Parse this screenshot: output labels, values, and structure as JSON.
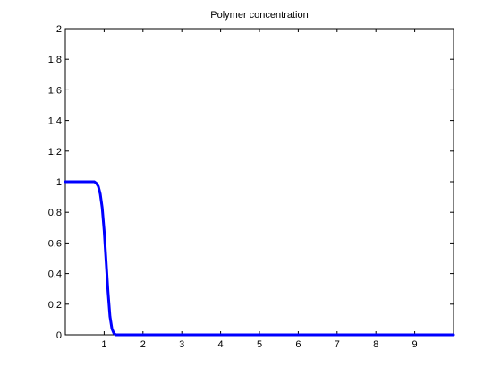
{
  "chart_data": {
    "type": "line",
    "title": "Polymer concentration",
    "xlabel": "",
    "ylabel": "",
    "xlim": [
      0,
      10
    ],
    "ylim": [
      0,
      2
    ],
    "xticks": [
      1,
      2,
      3,
      4,
      5,
      6,
      7,
      8,
      9
    ],
    "yticks": [
      0,
      0.2,
      0.4,
      0.6,
      0.8,
      1,
      1.2,
      1.4,
      1.6,
      1.8,
      2
    ],
    "xtick_labels": [
      "1",
      "2",
      "3",
      "4",
      "5",
      "6",
      "7",
      "8",
      "9"
    ],
    "ytick_labels": [
      "0",
      "0.2",
      "0.4",
      "0.6",
      "0.8",
      "1",
      "1.2",
      "1.4",
      "1.6",
      "1.8",
      "2"
    ],
    "grid": false,
    "series": [
      {
        "color": "#0000ff",
        "x": [
          0,
          0.5,
          0.75,
          0.8,
          0.85,
          0.9,
          0.95,
          1.0,
          1.05,
          1.1,
          1.15,
          1.2,
          1.25,
          1.3,
          1.4,
          1.6,
          2,
          3,
          4,
          5,
          6,
          7,
          8,
          9,
          10
        ],
        "y": [
          1,
          1,
          1,
          0.99,
          0.97,
          0.92,
          0.83,
          0.68,
          0.48,
          0.28,
          0.12,
          0.04,
          0.01,
          0,
          0,
          0,
          0,
          0,
          0,
          0,
          0,
          0,
          0,
          0,
          0
        ]
      }
    ]
  }
}
